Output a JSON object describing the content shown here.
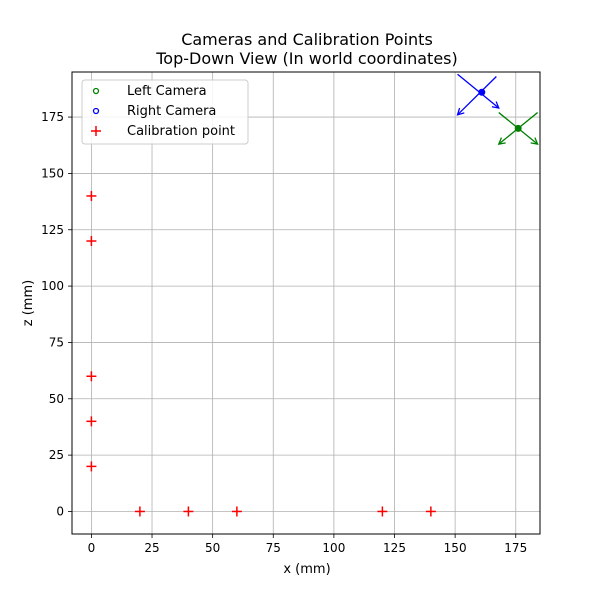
{
  "chart_data": {
    "type": "scatter",
    "title": "Cameras and Calibration Points",
    "subtitle": "Top-Down View (In world coordinates)",
    "xlabel": "x (mm)",
    "ylabel": "z (mm)",
    "xlim": [
      -8,
      185
    ],
    "ylim": [
      -10,
      195
    ],
    "xticks": [
      0,
      25,
      50,
      75,
      100,
      125,
      150,
      175
    ],
    "yticks": [
      0,
      25,
      50,
      75,
      100,
      125,
      150,
      175
    ],
    "xtick_labels": [
      "0",
      "25",
      "50",
      "75",
      "100",
      "125",
      "150",
      "175"
    ],
    "ytick_labels": [
      "0",
      "25",
      "50",
      "75",
      "100",
      "125",
      "150",
      "175"
    ],
    "grid": true,
    "legend_position": "top-left",
    "series": [
      {
        "name": "Left Camera",
        "marker": "circle",
        "color": "#008000",
        "points": [
          {
            "x": 176,
            "y": 170
          }
        ],
        "axes": [
          {
            "from": [
              168,
              177
            ],
            "to": [
              184,
              163
            ]
          },
          {
            "from": [
              184,
              177
            ],
            "to": [
              168,
              163
            ]
          }
        ]
      },
      {
        "name": "Right Camera",
        "marker": "circle",
        "color": "#0000ff",
        "points": [
          {
            "x": 161,
            "y": 186
          }
        ],
        "axes": [
          {
            "from": [
              151,
              194
            ],
            "to": [
              168,
              179
            ]
          },
          {
            "from": [
              167,
              193
            ],
            "to": [
              151,
              176
            ]
          }
        ]
      },
      {
        "name": "Calibration point",
        "marker": "plus",
        "color": "#ff0000",
        "points": [
          {
            "x": 0,
            "y": 140
          },
          {
            "x": 0,
            "y": 120
          },
          {
            "x": 0,
            "y": 60
          },
          {
            "x": 0,
            "y": 40
          },
          {
            "x": 0,
            "y": 20
          },
          {
            "x": 20,
            "y": 0
          },
          {
            "x": 40,
            "y": 0
          },
          {
            "x": 60,
            "y": 0
          },
          {
            "x": 120,
            "y": 0
          },
          {
            "x": 140,
            "y": 0
          }
        ]
      }
    ]
  }
}
